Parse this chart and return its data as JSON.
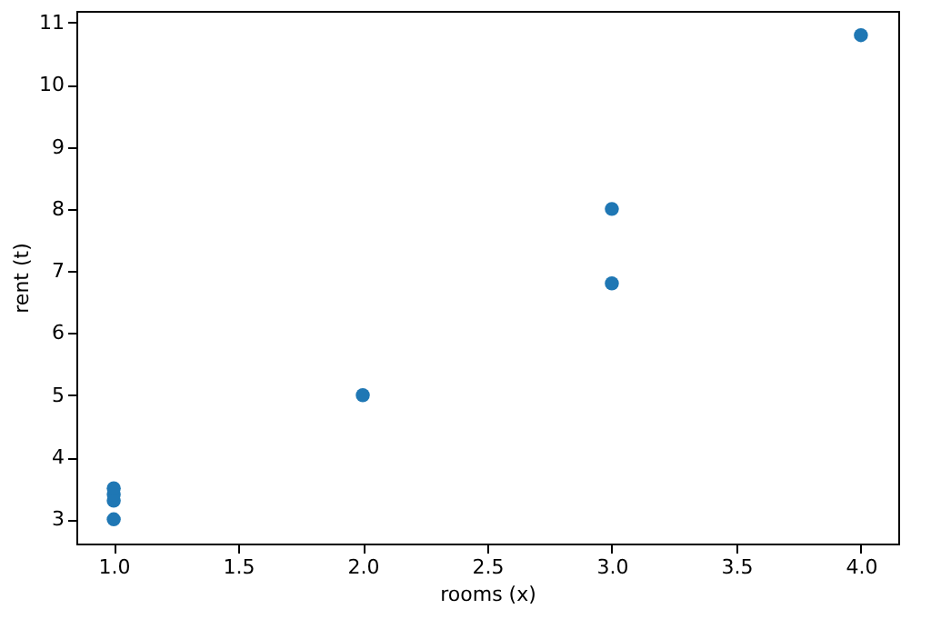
{
  "chart_data": {
    "type": "scatter",
    "xlabel": "rooms (x)",
    "ylabel": "rent (t)",
    "x": [
      1,
      1,
      1,
      1,
      2,
      3,
      3,
      4
    ],
    "series": [
      {
        "color": "#1f77b4",
        "values": [
          3.0,
          3.3,
          3.4,
          3.5,
          5.0,
          6.8,
          8.0,
          10.8
        ]
      }
    ],
    "xlim": [
      0.85,
      4.15
    ],
    "ylim": [
      2.61,
      11.19
    ],
    "xticks": [
      {
        "value": 1,
        "label": "1.0"
      },
      {
        "value": 1.5,
        "label": "1.5"
      },
      {
        "value": 2,
        "label": "2.0"
      },
      {
        "value": 2.5,
        "label": "2.5"
      },
      {
        "value": 3,
        "label": "3.0"
      },
      {
        "value": 3.5,
        "label": "3.5"
      },
      {
        "value": 4,
        "label": "4.0"
      }
    ],
    "yticks": [
      3,
      4,
      5,
      6,
      7,
      8,
      9,
      10,
      11
    ],
    "marker": "circle",
    "grid": false
  }
}
